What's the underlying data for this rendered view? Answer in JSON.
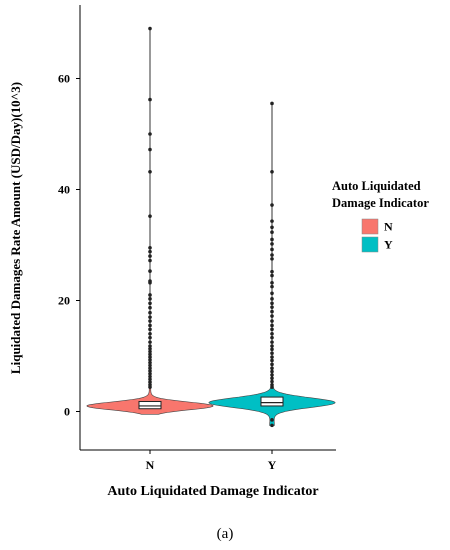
{
  "chart_data": {
    "type": "violin",
    "title": "",
    "xlabel": "Auto Liquidated Damage Indicator",
    "ylabel": "Liquidated Damages Rate Amount (USD/Day)(10^3)",
    "categories": [
      "N",
      "Y"
    ],
    "ylim": [
      -5,
      70
    ],
    "yticks": [
      0,
      20,
      40,
      60
    ],
    "grid": false,
    "legend": {
      "title_lines": [
        "Auto Liquidated",
        "Damage Indicator"
      ],
      "placement": "right",
      "entries": [
        {
          "label": "N",
          "color": "#F8766D"
        },
        {
          "label": "Y",
          "color": "#00BFC4"
        }
      ]
    },
    "series": [
      {
        "category": "N",
        "color": "#F8766D",
        "range": [
          -0.5,
          69
        ],
        "box": {
          "q1": 0.5,
          "median": 1.0,
          "q3": 1.8,
          "whisker_low": -0.5,
          "whisker_high": 4.0
        },
        "outliers": [
          69,
          56.2,
          50,
          47.2,
          43.2,
          35.2,
          29.5,
          28.8,
          28,
          27.2,
          25.3,
          23.5,
          23.2,
          21,
          20.3,
          19.5,
          18.7,
          17.8,
          17,
          16.3,
          15.5,
          14.8,
          14,
          13.3,
          12.5,
          11.8,
          11.3,
          10.8,
          10.3,
          9.8,
          9.3,
          8.8,
          8.3,
          7.8,
          7.3,
          6.8,
          6.3,
          5.8,
          5.3,
          4.8,
          4.4
        ]
      },
      {
        "category": "Y",
        "color": "#00BFC4",
        "range": [
          -2.5,
          55.5
        ],
        "box": {
          "q1": 1.0,
          "median": 1.6,
          "q3": 2.6,
          "whisker_low": -0.2,
          "whisker_high": 4.0
        },
        "outliers": [
          55.5,
          43.2,
          37.2,
          34.3,
          33.2,
          32.3,
          31,
          30.2,
          29.2,
          28.2,
          27.5,
          25.2,
          24.5,
          23.2,
          22.5,
          21.3,
          20.3,
          19.5,
          18.8,
          18,
          17.2,
          16.3,
          15.5,
          14.8,
          14,
          13.3,
          12.5,
          11.8,
          11.2,
          10.5,
          9.8,
          9.2,
          8.5,
          7.8,
          7.2,
          6.6,
          6,
          5.4,
          4.8,
          4.4,
          -1.5,
          -2.5
        ]
      }
    ],
    "caption": "(a)"
  }
}
